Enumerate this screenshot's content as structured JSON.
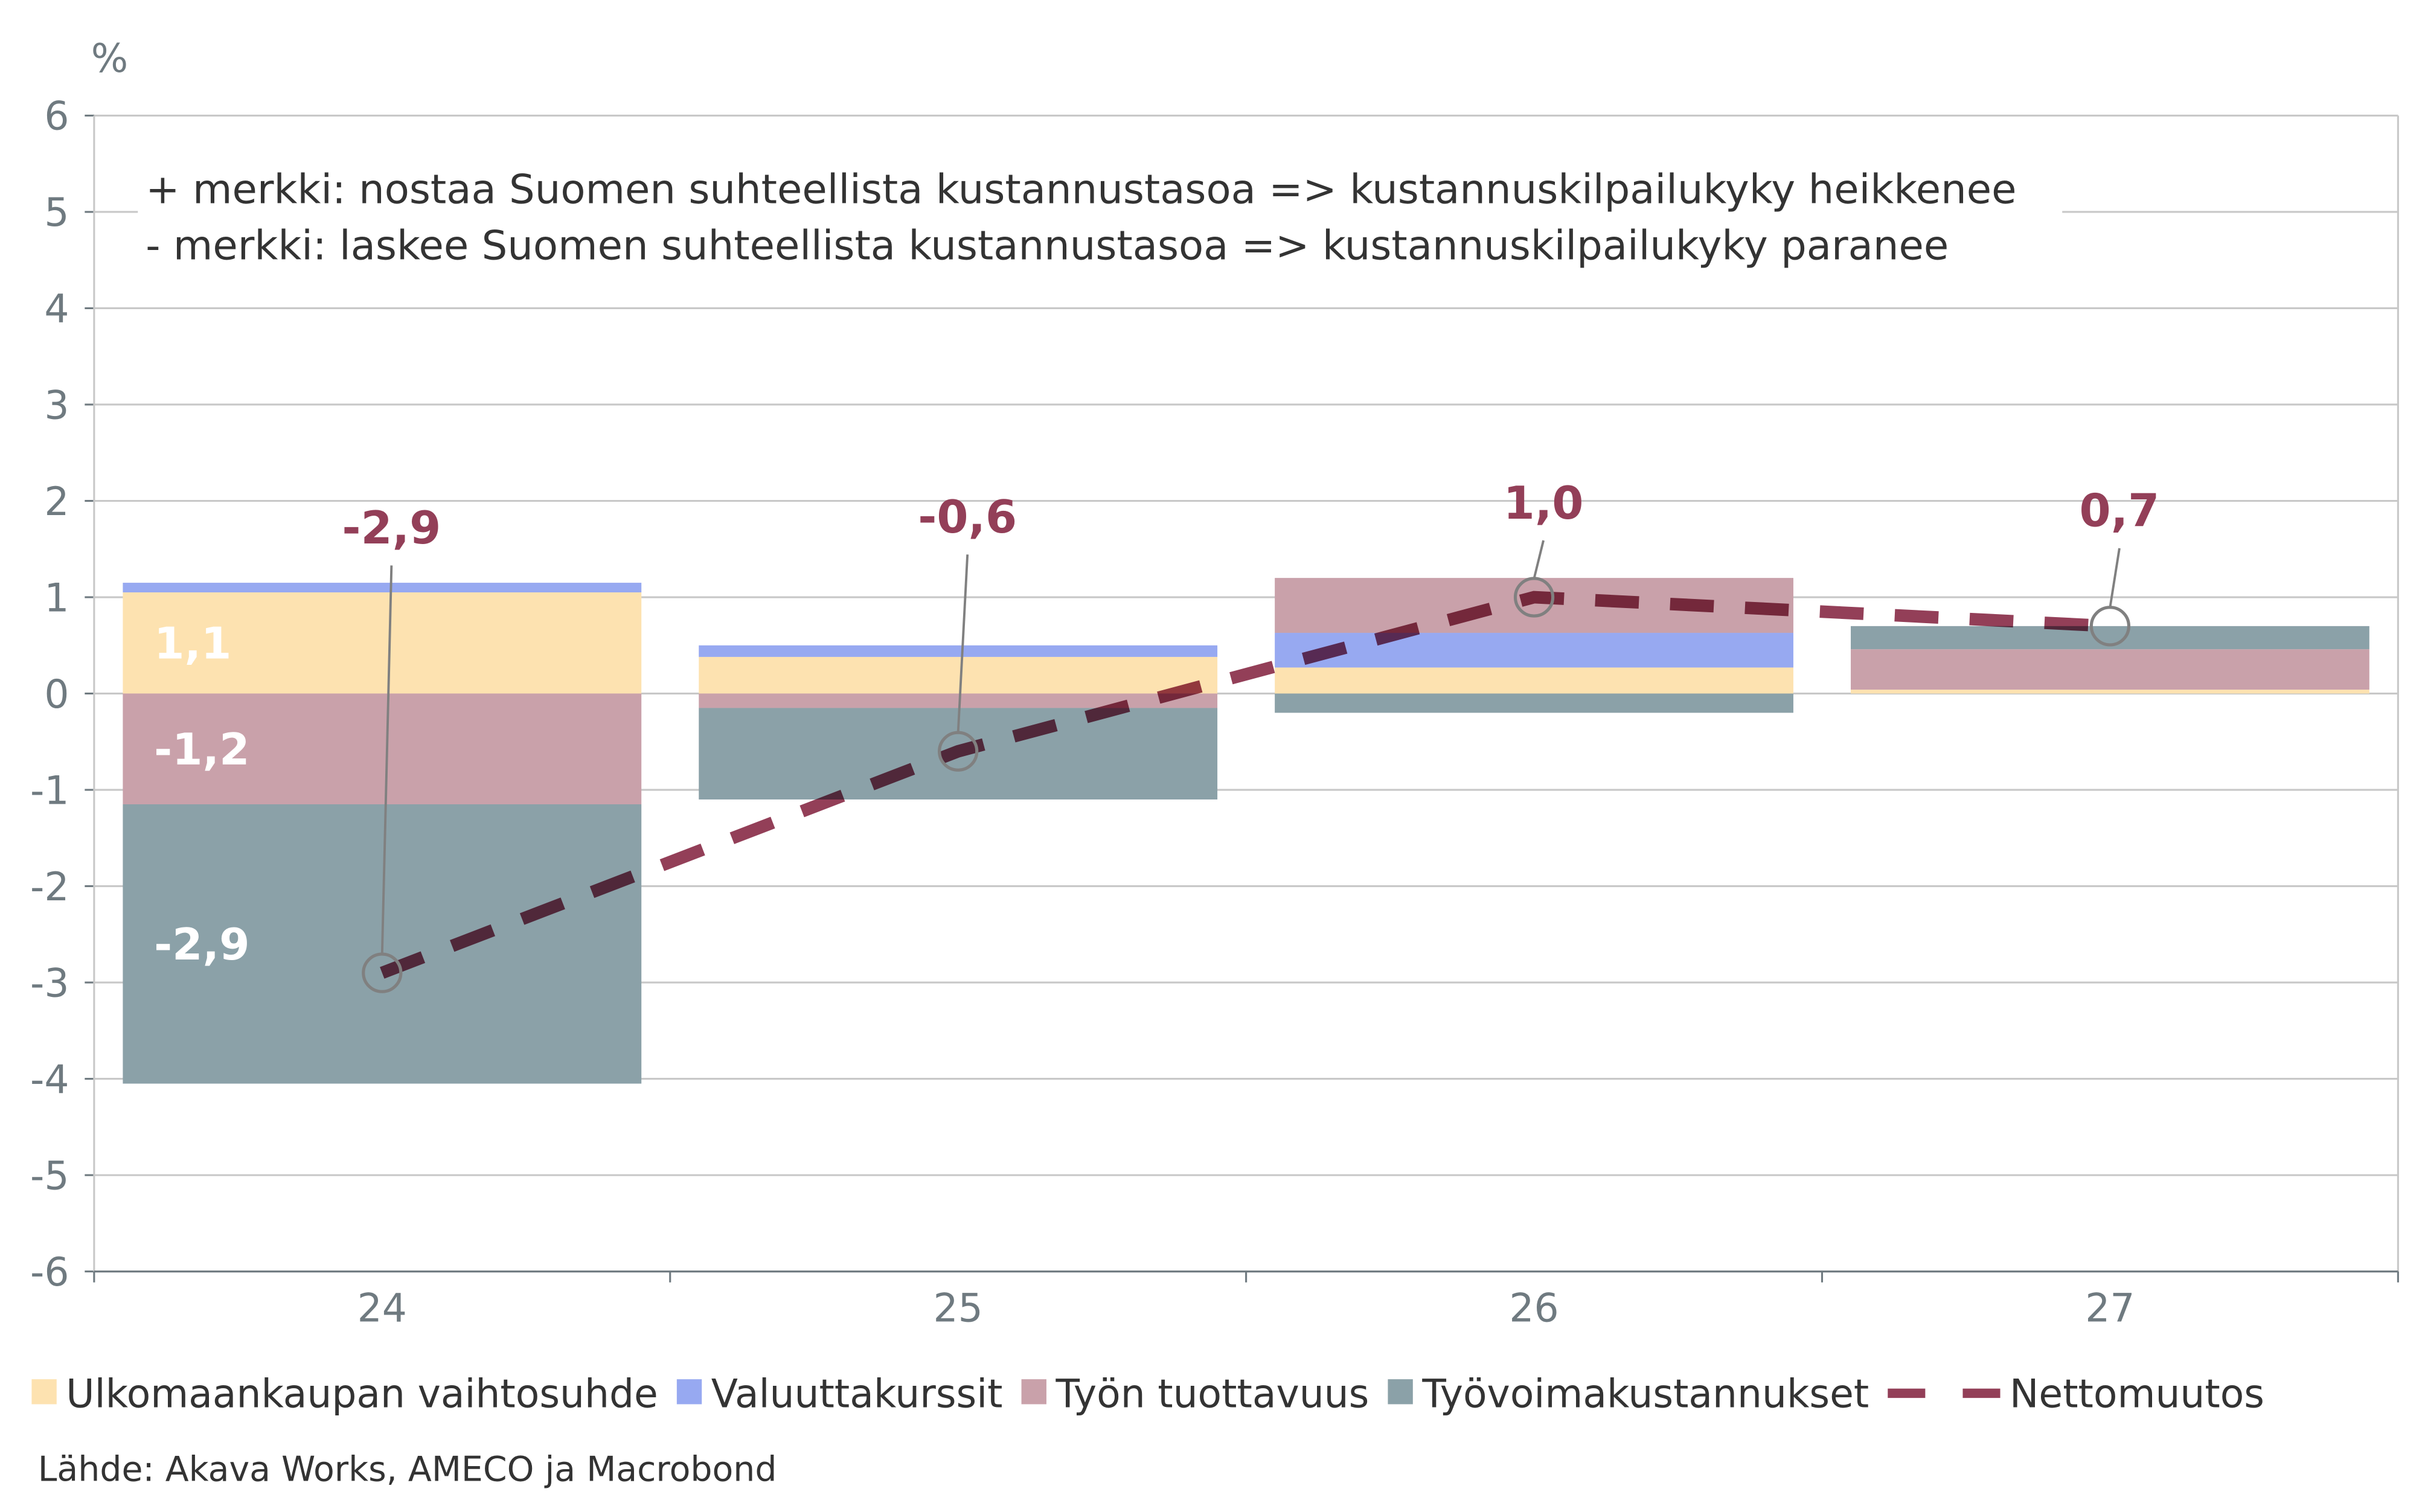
{
  "chart_data": {
    "type": "bar",
    "stacked": true,
    "ylabel": "%",
    "ylim": [
      -6,
      6
    ],
    "yticks": [
      "6",
      "5",
      "4",
      "3",
      "2",
      "1",
      "0",
      "-1",
      "-2",
      "-3",
      "-4",
      "-5",
      "-6"
    ],
    "categories": [
      "24",
      "25",
      "26",
      "27"
    ],
    "grid": true,
    "legend_placement": "bottom",
    "annotation_lines": [
      "+ merkki: nostaa Suomen suhteellista kustannustasoa => kustannuskilpailukyky heikkenee",
      "- merkki: laskee Suomen suhteellista kustannustasoa => kustannuskilpailukyky paranee"
    ],
    "series": [
      {
        "name": "Ulkomaankaupan vaihtosuhde",
        "color": "#FDE2B0",
        "values": [
          1.05,
          0.38,
          0.27,
          0.04
        ]
      },
      {
        "name": "Valuuttakurssit",
        "color": "#97A9F1",
        "values": [
          0.1,
          0.12,
          0.36,
          0.0
        ]
      },
      {
        "name": "Työn tuottavuus",
        "color": "#C9A1AA",
        "values": [
          -1.15,
          -0.15,
          0.57,
          0.42
        ]
      },
      {
        "name": "Työvoimakustannukset",
        "color": "#8BA1A8",
        "values": [
          -2.9,
          -0.95,
          -0.2,
          0.24
        ]
      }
    ],
    "line_series": {
      "name": "Nettomuutos",
      "color": "#933F58",
      "style": "dashed",
      "values": [
        -2.9,
        -0.6,
        1.0,
        0.7
      ],
      "labels": [
        "-2,9",
        "-0,6",
        "1,0",
        "0,7"
      ]
    },
    "segment_labels": [
      {
        "category": "24",
        "series": "Ulkomaankaupan vaihtosuhde",
        "text": "1,1"
      },
      {
        "category": "24",
        "series": "Työvoimakustannukset",
        "text": "-2,9"
      },
      {
        "category": "24",
        "series": "Työn tuottavuus",
        "text": "-1,2"
      }
    ],
    "source": "Lähde: Akava Works, AMECO ja Macrobond"
  }
}
